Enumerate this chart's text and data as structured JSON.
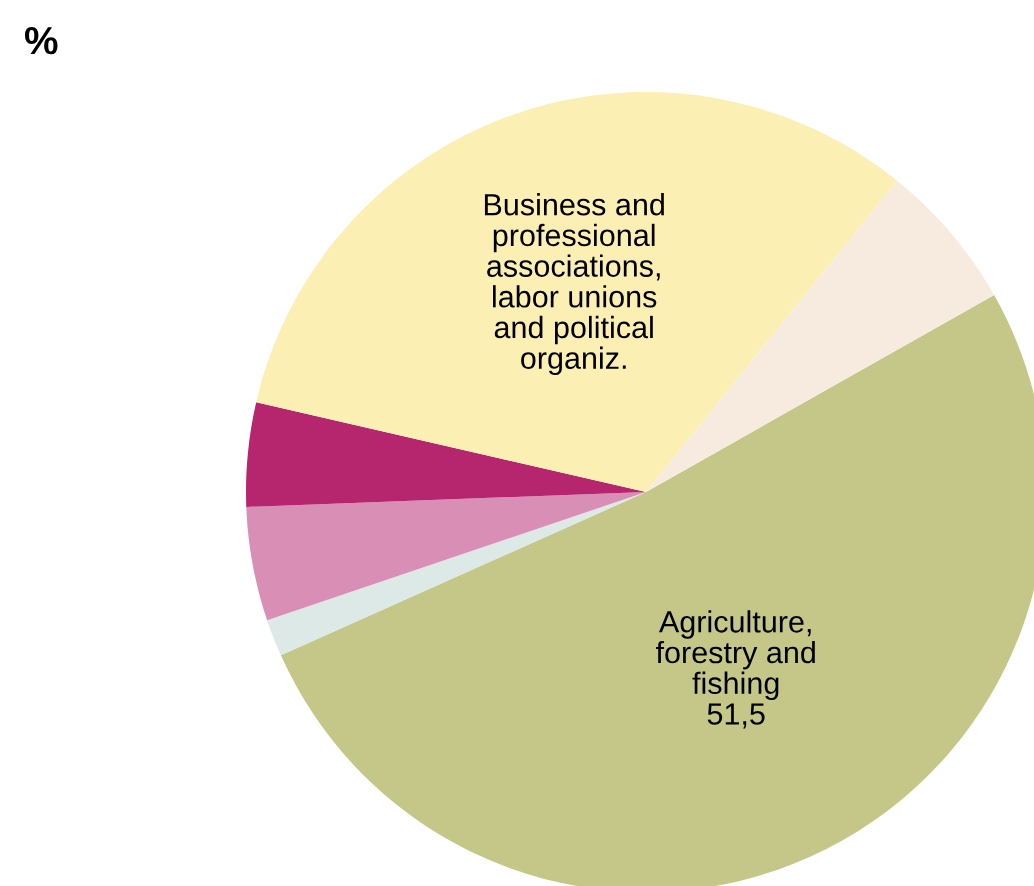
{
  "chart_data": {
    "type": "pie",
    "annotations": [
      "%"
    ],
    "categories": [
      "Agriculture, forestry and fishing",
      null,
      null,
      null,
      "Business and professional associations, labor unions and political organiz.",
      null
    ],
    "values": [
      51.5,
      1.5,
      4.6,
      4.2,
      32.2,
      6.0
    ],
    "value_labels": [
      "51,5",
      null,
      null,
      null,
      null,
      null
    ],
    "colors": [
      "#c5c789",
      "#dde9e6",
      "#d98fb5",
      "#b5266e",
      "#fcefb4",
      "#f7ebdf"
    ]
  }
}
